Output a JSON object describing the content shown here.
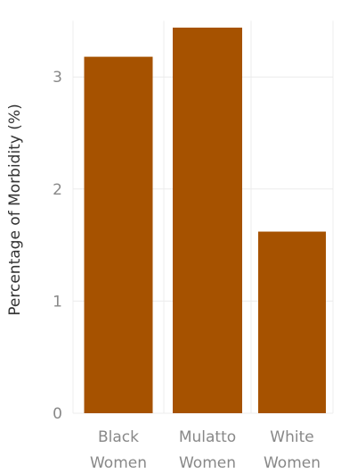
{
  "chart_data": {
    "type": "bar",
    "categories": [
      [
        "Black",
        "Women"
      ],
      [
        "Mulatto",
        "Women"
      ],
      [
        "White",
        "Women"
      ]
    ],
    "values": [
      3.18,
      3.44,
      1.62
    ],
    "title": "",
    "xlabel": "",
    "ylabel": "Percentage of Morbidity (%)",
    "ylim": [
      0,
      3.5
    ],
    "yticks": [
      "0",
      "1",
      "2",
      "3"
    ],
    "grid": true,
    "bar_color": "#a65200"
  }
}
